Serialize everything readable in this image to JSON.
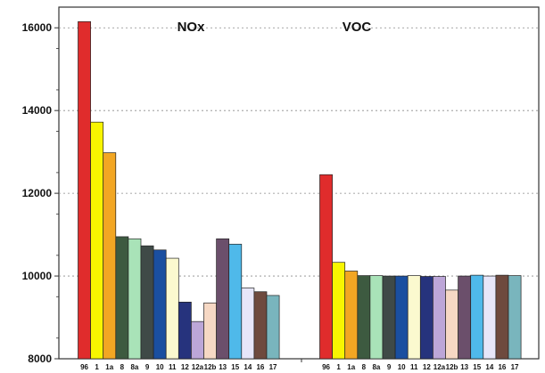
{
  "chart_data": {
    "type": "bar",
    "title": "",
    "xlabel": "",
    "ylabel": "",
    "ylim": [
      8000,
      16500
    ],
    "y_ticks": [
      "8000",
      "10000",
      "12000",
      "14000",
      "16000"
    ],
    "grid": "horizontal dashed",
    "categories": [
      "96",
      "1",
      "1a",
      "8",
      "8a",
      "9",
      "10",
      "11",
      "12",
      "12a",
      "12b",
      "13",
      "15",
      "14",
      "16",
      "17"
    ],
    "colors": [
      "#e02c2c",
      "#f8f500",
      "#f2a623",
      "#3d5a40",
      "#a9e3b8",
      "#3f4a47",
      "#1a4fa0",
      "#fbf9cf",
      "#26337d",
      "#bca6d8",
      "#f6d8c4",
      "#6b4f6b",
      "#4fb9ea",
      "#e7e6f9",
      "#6e4a3e",
      "#79b5bd"
    ],
    "groups": [
      {
        "name": "NOx",
        "values": [
          16150,
          13720,
          12980,
          10950,
          10900,
          10730,
          10630,
          10430,
          9370,
          8900,
          9350,
          10900,
          10770,
          9710,
          9620,
          9530
        ]
      },
      {
        "name": "VOC",
        "values": [
          12450,
          10330,
          10120,
          10010,
          10010,
          10000,
          10000,
          10010,
          9990,
          9990,
          9660,
          10000,
          10020,
          10000,
          10020,
          10010
        ]
      }
    ]
  }
}
